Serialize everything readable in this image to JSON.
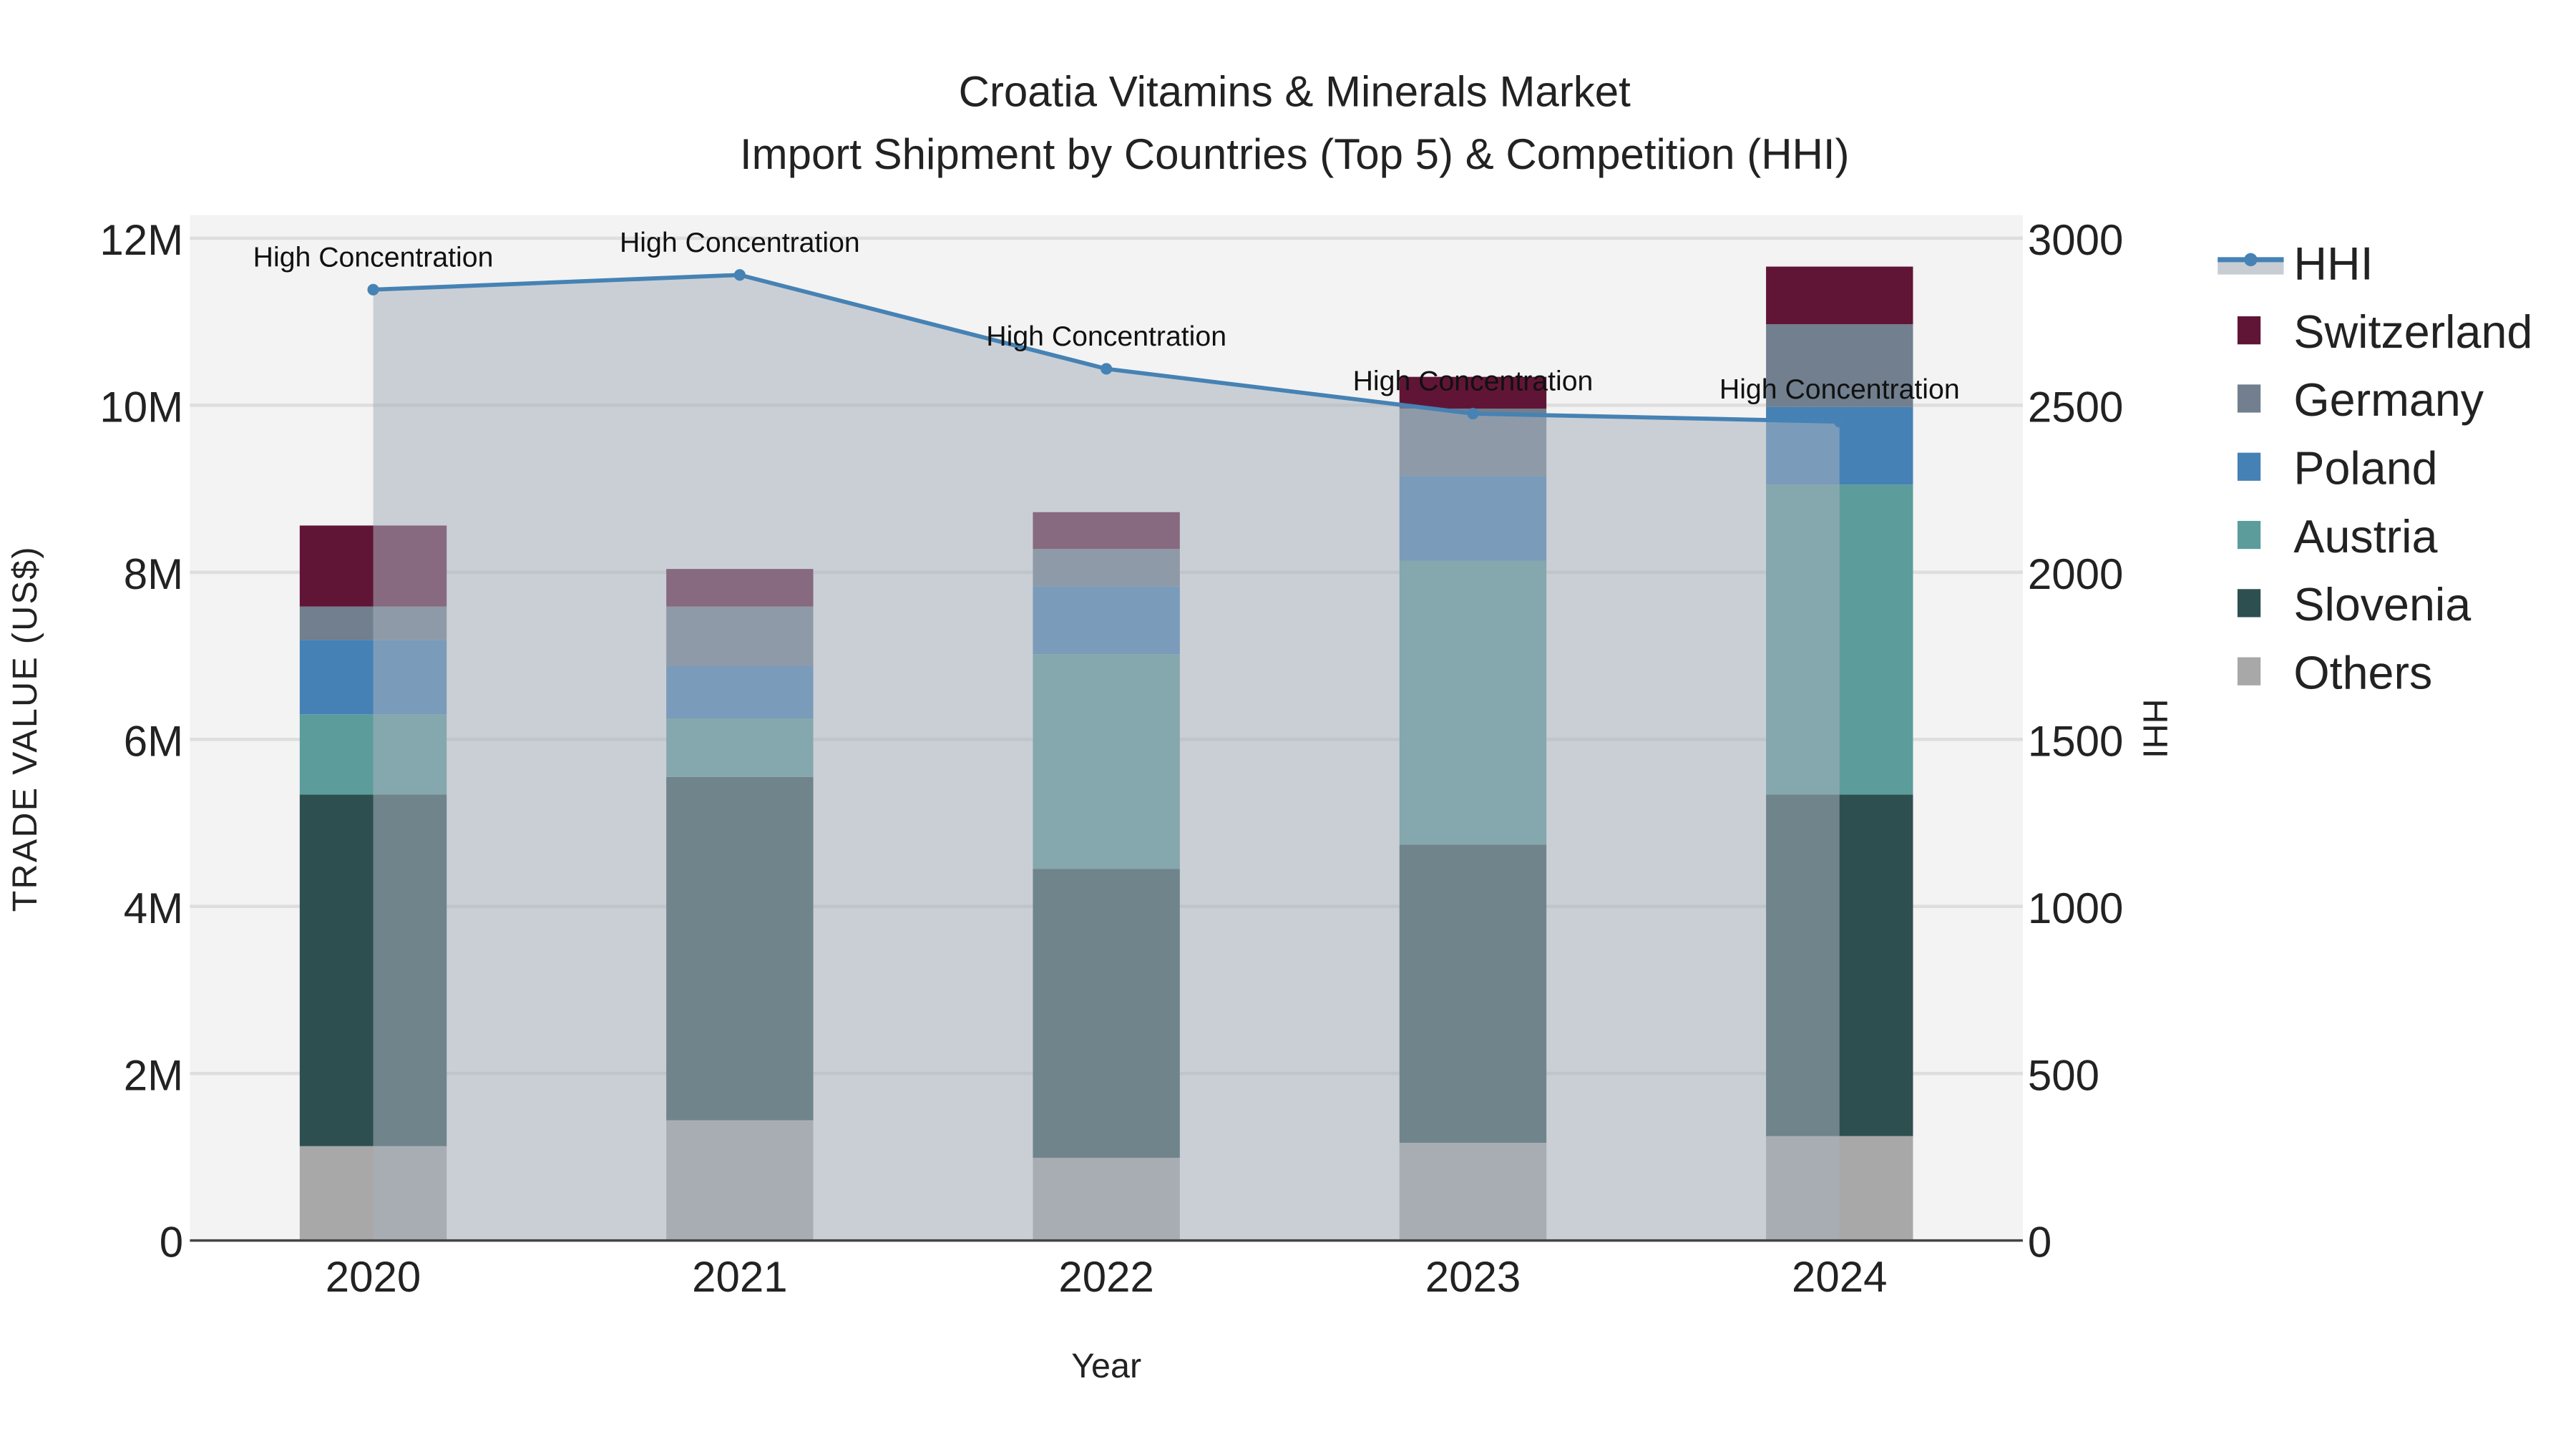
{
  "chart_data": {
    "type": "bar",
    "stacked": true,
    "title": "Croatia Vitamins & Minerals Market",
    "subtitle": "Import Shipment by Countries (Top 5) & Competition (HHI)",
    "xlabel": "Year",
    "ylabel": "TRADE VALUE (US$)",
    "y2label": "HHI",
    "categories": [
      "2020",
      "2021",
      "2022",
      "2023",
      "2024"
    ],
    "ylim": [
      0,
      12000000
    ],
    "y2lim": [
      0,
      3000
    ],
    "yticks": [
      0,
      2000000,
      4000000,
      6000000,
      8000000,
      10000000,
      12000000
    ],
    "ytick_labels": [
      "0",
      "2M",
      "4M",
      "6M",
      "8M",
      "10M",
      "12M"
    ],
    "y2ticks": [
      0,
      500,
      1000,
      1500,
      2000,
      2500,
      3000
    ],
    "y2tick_labels": [
      "0",
      "500",
      "1000",
      "1500",
      "2000",
      "2500",
      "3000"
    ],
    "grid": true,
    "legend_position": "right",
    "series": [
      {
        "name": "Others",
        "color": "#a8a8a8",
        "values": [
          1130000,
          1440000,
          990000,
          1170000,
          1250000
        ]
      },
      {
        "name": "Slovenia",
        "color": "#2e4f4f",
        "values": [
          4210000,
          4110000,
          3460000,
          3570000,
          4090000
        ]
      },
      {
        "name": "Austria",
        "color": "#5c9c9b",
        "values": [
          960000,
          700000,
          2570000,
          3400000,
          3710000
        ]
      },
      {
        "name": "Poland",
        "color": "#4581b5",
        "values": [
          890000,
          630000,
          810000,
          1010000,
          930000
        ]
      },
      {
        "name": "Germany",
        "color": "#717f8e",
        "values": [
          400000,
          710000,
          450000,
          810000,
          990000
        ]
      },
      {
        "name": "Switzerland",
        "color": "#611536",
        "values": [
          970000,
          450000,
          440000,
          380000,
          690000
        ]
      }
    ],
    "line": {
      "name": "HHI",
      "color": "#4682b4",
      "axis": "y2",
      "values": [
        2846,
        2890,
        2609,
        2475,
        2451
      ],
      "annotations": [
        "High Concentration",
        "High Concentration",
        "High Concentration",
        "High Concentration",
        "High Concentration"
      ]
    },
    "legend_order": [
      "HHI",
      "Switzerland",
      "Germany",
      "Poland",
      "Austria",
      "Slovenia",
      "Others"
    ]
  }
}
